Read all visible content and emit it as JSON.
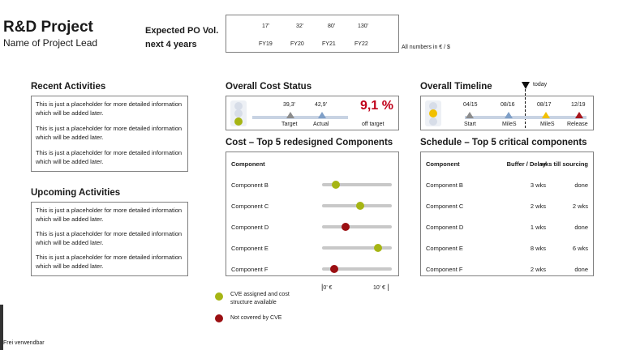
{
  "header": {
    "title": "R&D Project",
    "subtitle": "Name of Project Lead",
    "po_label_line1": "Expected PO Vol.",
    "po_label_line2": "next 4 years",
    "po_values": [
      "17’",
      "32’",
      "80’",
      "130’"
    ],
    "po_years": [
      "FY19",
      "FY20",
      "FY21",
      "FY22"
    ],
    "currency_note": "All numbers in € / $"
  },
  "recent": {
    "heading": "Recent Activities",
    "items": [
      "This is just a placeholder for more detailed information which will be added later.",
      "This is just a placeholder for more detailed information which will be added later.",
      "This is just a placeholder for more detailed information which will be added later."
    ]
  },
  "upcoming": {
    "heading": "Upcoming Activities",
    "items": [
      "This is just a placeholder for more detailed information which will be added later.",
      "This is just a placeholder for more detailed information which will be added later.",
      "This is just a placeholder for more detailed information which will be added later."
    ]
  },
  "cost_status": {
    "heading": "Overall Cost Status",
    "target_value": "39,3’",
    "actual_value": "42,9’",
    "target_label": "Target",
    "actual_label": "Actual",
    "percent": "9,1 %",
    "percent_label": "off target",
    "traffic_light": "green",
    "colors": {
      "target": "#8c8c8c",
      "actual": "#7f9fc7",
      "percent": "#c0001a"
    }
  },
  "timeline": {
    "heading": "Overall Timeline",
    "today_label": "today",
    "traffic_light": "amber",
    "dates": [
      "04/15",
      "08/16",
      "08/17",
      "12/19"
    ],
    "labels": [
      "Start",
      "MileS",
      "MileS",
      "Release"
    ],
    "colors": [
      "#8c8c8c",
      "#7f9fc7",
      "#f2c000",
      "#a8151b"
    ]
  },
  "cost_components": {
    "heading": "Cost – Top 5 redesigned Components",
    "column_header": "Component",
    "axis_min_label": "0’ €",
    "axis_max_label": "10’ €",
    "axis_range": [
      0,
      10
    ],
    "rows": [
      {
        "name": "Component B",
        "value": 2.0,
        "status": "assigned"
      },
      {
        "name": "Component C",
        "value": 5.5,
        "status": "assigned"
      },
      {
        "name": "Component D",
        "value": 3.4,
        "status": "not-covered"
      },
      {
        "name": "Component E",
        "value": 8.0,
        "status": "assigned"
      },
      {
        "name": "Component F",
        "value": 1.7,
        "status": "not-covered"
      }
    ],
    "status_colors": {
      "assigned": "#a6b514",
      "not-covered": "#9b0f12"
    }
  },
  "legend": {
    "assigned_line1": "CVE assigned and cost",
    "assigned_line2": "structure available",
    "not_covered": "Not covered by CVE"
  },
  "schedule": {
    "heading": "Schedule – Top 5 critical components",
    "headers": [
      "Component",
      "Buffer / Delay",
      "wks till sourcing"
    ],
    "rows": [
      [
        "Component B",
        "3 wks",
        "done"
      ],
      [
        "Component C",
        "2 wks",
        "2 wks"
      ],
      [
        "Component D",
        "1 wks",
        "done"
      ],
      [
        "Component E",
        "8 wks",
        "6 wks"
      ],
      [
        "Component F",
        "2 wks",
        "done"
      ]
    ]
  },
  "footer": {
    "note": "Frei verwendbar"
  }
}
